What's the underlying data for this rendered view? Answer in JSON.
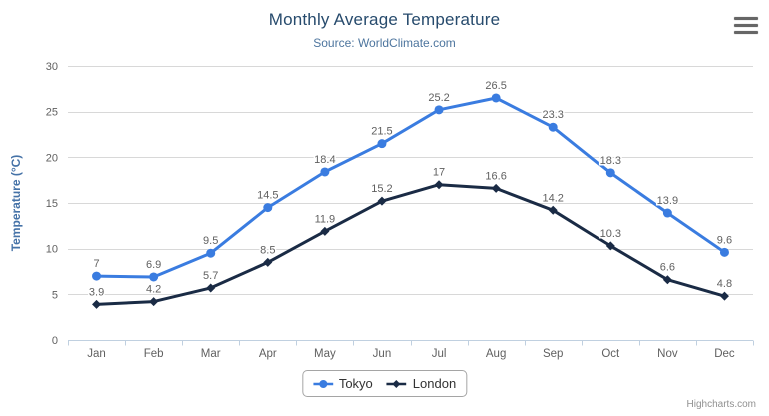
{
  "chart_data": {
    "type": "line",
    "title": "Monthly Average Temperature",
    "subtitle": "Source: WorldClimate.com",
    "categories": [
      "Jan",
      "Feb",
      "Mar",
      "Apr",
      "May",
      "Jun",
      "Jul",
      "Aug",
      "Sep",
      "Oct",
      "Nov",
      "Dec"
    ],
    "series": [
      {
        "name": "Tokyo",
        "marker": "circle",
        "color": "#3a7ce0",
        "values": [
          7,
          6.9,
          9.5,
          14.5,
          18.4,
          21.5,
          25.2,
          26.5,
          23.3,
          18.3,
          13.9,
          9.6
        ]
      },
      {
        "name": "London",
        "marker": "diamond",
        "color": "#1a2b45",
        "values": [
          3.9,
          4.2,
          5.7,
          8.5,
          11.9,
          15.2,
          17,
          16.6,
          14.2,
          10.3,
          6.6,
          4.8
        ]
      }
    ],
    "xlabel": "",
    "ylabel": "Temperature (°C)",
    "ylim": [
      0,
      30
    ],
    "ytick_interval": 5,
    "yticks": [
      0,
      5,
      10,
      15,
      20,
      25,
      30
    ],
    "grid": true,
    "data_labels": true,
    "legend_position": "bottom"
  },
  "colors": {
    "grid_line": "#d8d8d8",
    "axis_line": "#c0d0e0",
    "tick_label": "#606060",
    "data_label": "#606060",
    "y_axis_title": "#4572a7",
    "title": "#274b6d",
    "subtitle": "#4d759e"
  },
  "credits": {
    "label": "Highcharts.com"
  }
}
